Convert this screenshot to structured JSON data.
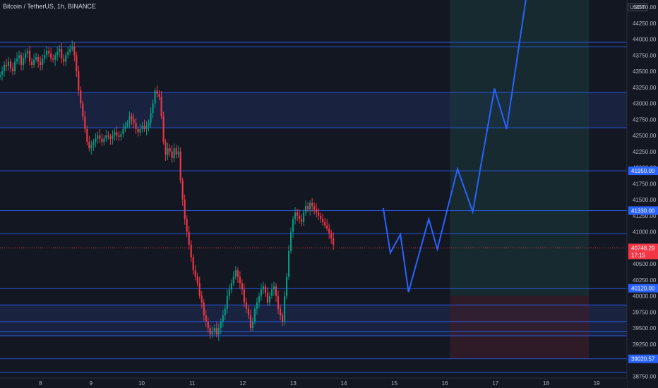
{
  "chart_data": {
    "type": "candlestick",
    "title": "Bitcoin / TetherUS, 1h, BINANCE",
    "symbol": "Bitcoin / TetherUS",
    "interval": "1h",
    "exchange": "BINANCE",
    "currency": "USDT",
    "x_ticks": [
      "8",
      "9",
      "10",
      "11",
      "12",
      "13",
      "14",
      "15",
      "16",
      "17",
      "18",
      "19"
    ],
    "y_ticks": [
      38750,
      39000,
      39250,
      39500,
      39750,
      40000,
      40250,
      40500,
      40750,
      41000,
      41250,
      41500,
      41750,
      42000,
      42250,
      42500,
      42750,
      43000,
      43250,
      43500,
      43750,
      44000,
      44250,
      44500
    ],
    "y_tick_labels": [
      "38750.00",
      "39000.00",
      "39250.00",
      "39500.00",
      "39750.00",
      "40000.00",
      "40250.00",
      "40500.00",
      "40750.00",
      "41000.00",
      "41250.00",
      "41500.00",
      "41750.00",
      "42000.00",
      "42250.00",
      "42500.00",
      "42750.00",
      "43000.00",
      "43250.00",
      "43500.00",
      "43750.00",
      "44000.00",
      "44250.00",
      "44500.00"
    ],
    "ylim": [
      38720,
      44610
    ],
    "xlim": [
      7.2,
      19.6
    ],
    "grid": false,
    "current_price": {
      "value": 40748.29,
      "label": "40748.29",
      "countdown": "17:15",
      "color": "#f23645"
    },
    "levels": [
      {
        "value": 43950,
        "label": null
      },
      {
        "value": 43880,
        "label": null
      },
      {
        "value": 43170,
        "label": null
      },
      {
        "value": 42620,
        "label": null
      },
      {
        "value": 41950,
        "label": "41950.00"
      },
      {
        "value": 41330,
        "label": "41330.00"
      },
      {
        "value": 40970,
        "label": null
      },
      {
        "value": 40120,
        "label": "40120.00"
      },
      {
        "value": 39860,
        "label": null
      },
      {
        "value": 39600,
        "label": null
      },
      {
        "value": 39450,
        "label": null
      },
      {
        "value": 39380,
        "label": null
      },
      {
        "value": 39020.57,
        "label": "39020.57"
      },
      {
        "value": 38810,
        "label": null
      }
    ],
    "zones": [
      {
        "y_from": 42620,
        "y_to": 43170,
        "color": "#1c2a4d"
      },
      {
        "y_from": 39380,
        "y_to": 39860,
        "color": "#1c2a4d"
      }
    ],
    "target_box": {
      "x_from": 16.1,
      "x_to": 18.85,
      "y_from": 40000,
      "y_to": 44610,
      "color": "#1c3a3a"
    },
    "stop_box": {
      "x_from": 16.1,
      "x_to": 18.85,
      "y_from": 39020,
      "y_to": 40000,
      "color": "#3a1e29"
    },
    "projection_path": {
      "color": "#2962ff",
      "points": [
        [
          14.78,
          41370
        ],
        [
          14.92,
          40670
        ],
        [
          15.12,
          40960
        ],
        [
          15.28,
          40060
        ],
        [
          15.68,
          41200
        ],
        [
          15.85,
          40730
        ],
        [
          16.25,
          41980
        ],
        [
          16.55,
          41310
        ],
        [
          16.98,
          43230
        ],
        [
          17.22,
          42600
        ],
        [
          17.6,
          44610
        ]
      ]
    },
    "price_series": {
      "x_start": 7.2,
      "x_step": 0.042,
      "up_color": "#089981",
      "down_color": "#f23645",
      "close": [
        43450,
        43500,
        43600,
        43580,
        43650,
        43550,
        43500,
        43650,
        43700,
        43750,
        43600,
        43700,
        43780,
        43820,
        43650,
        43600,
        43680,
        43720,
        43650,
        43600,
        43700,
        43750,
        43820,
        43780,
        43700,
        43680,
        43750,
        43800,
        43850,
        43700,
        43650,
        43750,
        43800,
        43850,
        43880,
        43750,
        43500,
        43200,
        43000,
        42800,
        42600,
        42400,
        42300,
        42350,
        42400,
        42450,
        42500,
        42450,
        42400,
        42450,
        42500,
        42480,
        42450,
        42500,
        42550,
        42500,
        42480,
        42520,
        42600,
        42650,
        42700,
        42800,
        42750,
        42700,
        42600,
        42550,
        42600,
        42650,
        42600,
        42650,
        42700,
        42850,
        43000,
        43200,
        43150,
        43100,
        42800,
        42400,
        42200,
        42300,
        42250,
        42150,
        42300,
        42200,
        42250,
        41800,
        41500,
        41200,
        41000,
        40800,
        40600,
        40400,
        40300,
        40200,
        40000,
        39900,
        39700,
        39600,
        39500,
        39400,
        39450,
        39500,
        39400,
        39500,
        39600,
        39700,
        39800,
        40000,
        40100,
        40200,
        40300,
        40400,
        40300,
        40200,
        40100,
        39900,
        39800,
        39700,
        39500,
        39600,
        39800,
        39900,
        40000,
        40100,
        40150,
        40050,
        39900,
        40000,
        40100,
        40150,
        40000,
        39800,
        39700,
        39600,
        40000,
        40300,
        40700,
        41000,
        41200,
        41300,
        41250,
        41200,
        41150,
        41300,
        41400,
        41350,
        41450,
        41400,
        41350,
        41300,
        41250,
        41200,
        41150,
        41100,
        41050,
        40980,
        40900,
        40800
      ]
    }
  }
}
